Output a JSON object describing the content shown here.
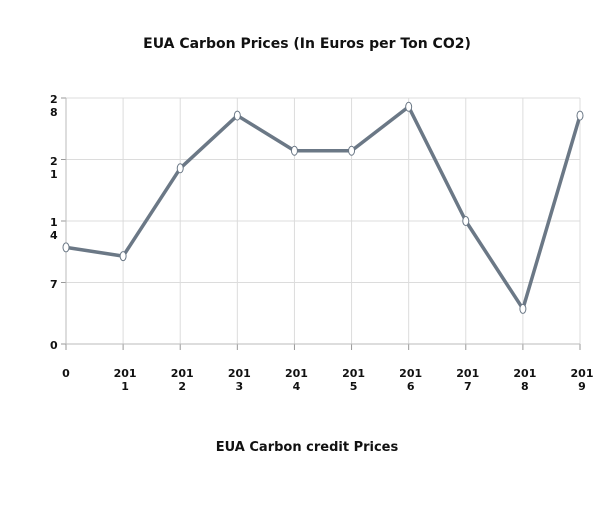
{
  "chart_data": {
    "type": "line",
    "title": "EUA Carbon Prices (In Euros per Ton CO2)",
    "x_label": "EUA Carbon credit Prices",
    "categories": [
      "0",
      "2011",
      "2012",
      "2013",
      "2014",
      "2015",
      "2016",
      "2017",
      "2018",
      "2019"
    ],
    "series": [
      {
        "color": "#6b7886",
        "values": [
          11,
          10,
          20,
          26,
          22,
          22,
          27,
          14,
          4,
          26
        ]
      }
    ],
    "ylim": [
      0,
      28
    ],
    "yticks": [
      0,
      7,
      14,
      21,
      28
    ],
    "grid": true
  }
}
